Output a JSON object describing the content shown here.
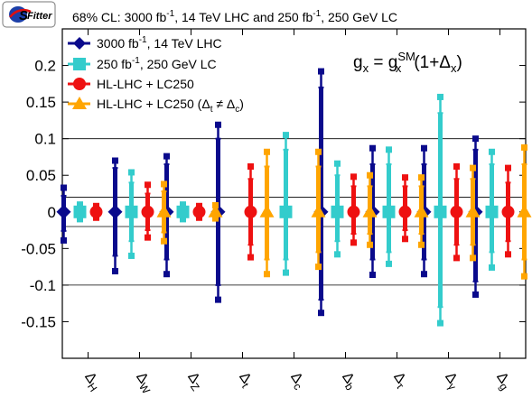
{
  "logo_text": "SFitter",
  "header": {
    "prefix": "68% CL: 3000 fb",
    "sup1": "-1",
    "middle": ", 14 TeV LHC and 250 fb",
    "sup2": "-1",
    "suffix": ", 250 GeV LC"
  },
  "formula": {
    "g": "g",
    "x": "x",
    "eq": " = g",
    "sm": "SM",
    "tail": "(1+Δ",
    "close": ")"
  },
  "chart_data": {
    "type": "scatter",
    "subtype": "error-bars",
    "title": "68% CL: 3000 fb^-1, 14 TeV LHC and 250 fb^-1, 250 GeV LC",
    "annotation": "g_x = g_x^SM (1+Δ_x)",
    "categories": [
      "ΔH",
      "ΔW",
      "ΔZ",
      "Δt",
      "Δc",
      "Δb",
      "Δτ",
      "Δγ",
      "Δg"
    ],
    "category_labels": [
      {
        "delta": "Δ",
        "sub": "H"
      },
      {
        "delta": "Δ",
        "sub": "W"
      },
      {
        "delta": "Δ",
        "sub": "Z"
      },
      {
        "delta": "Δ",
        "sub": "t"
      },
      {
        "delta": "Δ",
        "sub": "c"
      },
      {
        "delta": "Δ",
        "sub": "b"
      },
      {
        "delta": "Δ",
        "sub": "τ"
      },
      {
        "delta": "Δ",
        "sub": "γ"
      },
      {
        "delta": "Δ",
        "sub": "g"
      }
    ],
    "ylim": [
      -0.2,
      0.25
    ],
    "yticks": [
      -0.15,
      -0.1,
      -0.05,
      0,
      0.05,
      0.1,
      0.15,
      0.2
    ],
    "ytick_labels": [
      "-0.15",
      "-0.1",
      "-0.05",
      "0",
      "0.05",
      "0.1",
      "0.15",
      "0.2"
    ],
    "reference_lines": [
      -0.1,
      -0.02,
      0.02,
      0.1
    ],
    "legend_position": "top-left",
    "series": [
      {
        "name": "3000 fb^-1, 14 TeV LHC",
        "legend": {
          "a": "3000 fb",
          "sup": "-1",
          "b": ", 14 TeV LHC"
        },
        "marker": "diamond",
        "color": "#0a0a8c",
        "errors": [
          {
            "outer": [
              -0.039,
              0.033
            ],
            "inner": [
              -0.026,
              0.022
            ]
          },
          {
            "outer": [
              -0.081,
              0.07
            ],
            "inner": [
              -0.06,
              0.06
            ]
          },
          {
            "outer": [
              -0.085,
              0.076
            ],
            "inner": [
              -0.065,
              0.065
            ]
          },
          {
            "outer": [
              -0.12,
              0.119
            ],
            "inner": [
              -0.1,
              0.1
            ]
          },
          {
            "outer": null,
            "inner": null
          },
          {
            "outer": [
              -0.138,
              0.192
            ],
            "inner": [
              -0.12,
              0.17
            ]
          },
          {
            "outer": [
              -0.086,
              0.087
            ],
            "inner": [
              -0.065,
              0.065
            ]
          },
          {
            "outer": [
              -0.085,
              0.087
            ],
            "inner": [
              -0.065,
              0.065
            ]
          },
          {
            "outer": [
              -0.113,
              0.1
            ],
            "inner": [
              -0.095,
              0.085
            ]
          }
        ]
      },
      {
        "name": "250 fb^-1, 250 GeV LC",
        "legend": {
          "a": "250 fb",
          "sup": "-1",
          "b": ", 250 GeV LC"
        },
        "marker": "square",
        "color": "#33cccc",
        "errors": [
          {
            "outer": [
              -0.01,
              0.01
            ],
            "inner": [
              -0.007,
              0.007
            ]
          },
          {
            "outer": [
              -0.06,
              0.054
            ],
            "inner": [
              -0.04,
              0.04
            ]
          },
          {
            "outer": [
              -0.01,
              0.01
            ],
            "inner": [
              -0.007,
              0.007
            ]
          },
          {
            "outer": null,
            "inner": null
          },
          {
            "outer": [
              -0.083,
              0.105
            ],
            "inner": [
              -0.065,
              0.085
            ]
          },
          {
            "outer": [
              -0.058,
              0.066
            ],
            "inner": [
              -0.04,
              0.05
            ]
          },
          {
            "outer": [
              -0.071,
              0.085
            ],
            "inner": [
              -0.055,
              0.065
            ]
          },
          {
            "outer": [
              -0.152,
              0.157
            ],
            "inner": [
              -0.13,
              0.135
            ]
          },
          {
            "outer": [
              -0.076,
              0.082
            ],
            "inner": [
              -0.055,
              0.065
            ]
          }
        ]
      },
      {
        "name": "HL-LHC + LC250",
        "legend": {
          "a": "HL-LHC + LC250"
        },
        "marker": "circle",
        "color": "#ee1111",
        "errors": [
          {
            "outer": [
              -0.008,
              0.008
            ],
            "inner": [
              -0.006,
              0.006
            ]
          },
          {
            "outer": [
              -0.035,
              0.037
            ],
            "inner": [
              -0.025,
              0.025
            ]
          },
          {
            "outer": [
              -0.008,
              0.008
            ],
            "inner": [
              -0.006,
              0.006
            ]
          },
          {
            "outer": [
              -0.062,
              0.062
            ],
            "inner": [
              -0.045,
              0.045
            ]
          },
          {
            "outer": null,
            "inner": null
          },
          {
            "outer": [
              -0.042,
              0.048
            ],
            "inner": [
              -0.03,
              0.035
            ]
          },
          {
            "outer": [
              -0.037,
              0.047
            ],
            "inner": [
              -0.025,
              0.035
            ]
          },
          {
            "outer": [
              -0.063,
              0.062
            ],
            "inner": [
              -0.045,
              0.045
            ]
          },
          {
            "outer": [
              -0.058,
              0.06
            ],
            "inner": [
              -0.04,
              0.04
            ]
          }
        ]
      },
      {
        "name": "HL-LHC + LC250 (Δt ≠ Δc)",
        "legend": {
          "a": "HL-LHC + LC250 (Δ",
          "sub1": "t",
          "mid": " ≠ Δ",
          "sub2": "c",
          "b": ")"
        },
        "marker": "triangle",
        "color": "#ffa500",
        "errors": [
          {
            "outer": null,
            "inner": null
          },
          {
            "outer": [
              -0.04,
              0.038
            ],
            "inner": [
              -0.028,
              0.028
            ]
          },
          {
            "outer": [
              -0.009,
              0.009
            ],
            "inner": [
              -0.006,
              0.006
            ]
          },
          {
            "outer": [
              -0.085,
              0.082
            ],
            "inner": [
              -0.065,
              0.062
            ]
          },
          {
            "outer": [
              -0.075,
              0.082
            ],
            "inner": [
              -0.055,
              0.062
            ]
          },
          {
            "outer": [
              -0.045,
              0.05
            ],
            "inner": [
              -0.03,
              0.035
            ]
          },
          {
            "outer": [
              -0.045,
              0.047
            ],
            "inner": [
              -0.03,
              0.035
            ]
          },
          {
            "outer": [
              -0.063,
              0.06
            ],
            "inner": [
              -0.045,
              0.045
            ]
          },
          {
            "outer": [
              -0.088,
              0.088
            ],
            "inner": [
              -0.065,
              0.065
            ]
          }
        ]
      }
    ]
  }
}
